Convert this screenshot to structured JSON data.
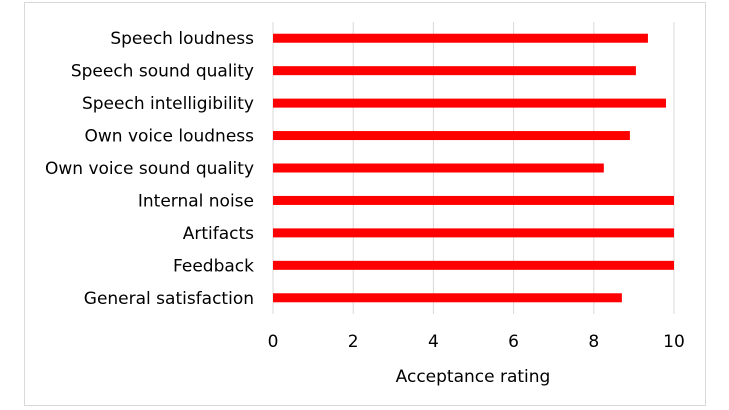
{
  "chart_data": {
    "type": "bar",
    "orientation": "horizontal",
    "categories": [
      "Speech loudness",
      "Speech sound quality",
      "Speech intelligibility",
      "Own voice loudness",
      "Own voice sound quality",
      "Internal noise",
      "Artifacts",
      "Feedback",
      "General satisfaction"
    ],
    "values": [
      9.35,
      9.05,
      9.8,
      8.9,
      8.25,
      10.0,
      10.0,
      10.0,
      8.7
    ],
    "xlabel": "Acceptance rating",
    "ylabel": "",
    "xlim": [
      0,
      10
    ],
    "xticks": [
      "0",
      "2",
      "4",
      "6",
      "8",
      "10"
    ],
    "bar_color": "#ff0000",
    "grid": true
  }
}
